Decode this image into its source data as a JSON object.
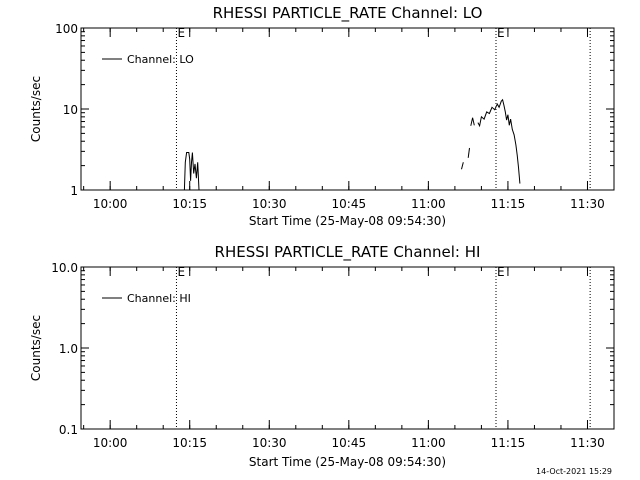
{
  "chart_data": [
    {
      "type": "line",
      "title": "RHESSI PARTICLE_RATE Channel: LO",
      "xlabel": "Start Time (25-May-08 09:54:30)",
      "ylabel": "Counts/sec",
      "y_scale": "log",
      "ylim": [
        1,
        100
      ],
      "y_ticks": [
        1,
        10,
        100
      ],
      "y_tick_labels": [
        "1",
        "10",
        "100"
      ],
      "xlim": [
        "09:54:30",
        "11:35:00"
      ],
      "x_ticks": [
        "10:00",
        "10:15",
        "10:30",
        "10:45",
        "11:00",
        "11:15",
        "11:30"
      ],
      "legend": {
        "entries": [
          "Channel: LO"
        ],
        "position": "top-left"
      },
      "event_lines": [
        {
          "time": "10:12:30",
          "label": "E"
        },
        {
          "time": "11:12:45",
          "label": "E"
        },
        {
          "time": "11:30:30",
          "label": ""
        }
      ],
      "series": [
        {
          "name": "Channel: LO",
          "segments": [
            [
              [
                "10:14:00",
                1.0
              ],
              [
                "10:14:10",
                2.2
              ],
              [
                "10:14:25",
                2.9
              ],
              [
                "10:14:50",
                2.9
              ],
              [
                "10:15:00",
                2.4
              ],
              [
                "10:15:10",
                1.3
              ],
              [
                "10:15:20",
                2.2
              ],
              [
                "10:15:30",
                2.9
              ],
              [
                "10:15:45",
                1.6
              ],
              [
                "10:16:00",
                2.1
              ],
              [
                "10:16:15",
                1.4
              ],
              [
                "10:16:30",
                2.2
              ],
              [
                "10:16:45",
                1.0
              ]
            ],
            [
              [
                "11:06:15",
                1.8
              ],
              [
                "11:06:35",
                2.2
              ]
            ],
            [
              [
                "11:07:30",
                2.5
              ],
              [
                "11:07:45",
                3.3
              ]
            ],
            [
              [
                "11:08:00",
                6.2
              ],
              [
                "11:08:20",
                7.8
              ],
              [
                "11:08:40",
                6.3
              ]
            ],
            [
              [
                "11:09:20",
                6.8
              ],
              [
                "11:09:40",
                6.2
              ],
              [
                "11:10:00",
                8.0
              ],
              [
                "11:10:30",
                7.5
              ],
              [
                "11:11:00",
                9.2
              ],
              [
                "11:11:30",
                8.8
              ],
              [
                "11:12:00",
                10.5
              ],
              [
                "11:12:30",
                9.8
              ],
              [
                "11:13:00",
                11.5
              ],
              [
                "11:13:20",
                10.5
              ],
              [
                "11:13:45",
                12.5
              ],
              [
                "11:14:00",
                13.0
              ],
              [
                "11:14:15",
                11.0
              ],
              [
                "11:14:30",
                9.2
              ],
              [
                "11:14:45",
                7.3
              ],
              [
                "11:15:00",
                8.5
              ],
              [
                "11:15:15",
                6.3
              ],
              [
                "11:15:30",
                7.5
              ],
              [
                "11:15:50",
                5.6
              ],
              [
                "11:16:10",
                4.8
              ],
              [
                "11:16:30",
                3.6
              ],
              [
                "11:16:45",
                2.7
              ],
              [
                "11:17:00",
                1.9
              ],
              [
                "11:17:15",
                1.2
              ]
            ]
          ]
        }
      ]
    },
    {
      "type": "line",
      "title": "RHESSI PARTICLE_RATE Channel: HI",
      "xlabel": "Start Time (25-May-08 09:54:30)",
      "ylabel": "Counts/sec",
      "y_scale": "log",
      "ylim": [
        0.1,
        10
      ],
      "y_ticks": [
        0.1,
        1,
        10
      ],
      "y_tick_labels": [
        "0.1",
        "1.0",
        "10.0"
      ],
      "xlim": [
        "09:54:30",
        "11:35:00"
      ],
      "x_ticks": [
        "10:00",
        "10:15",
        "10:30",
        "10:45",
        "11:00",
        "11:15",
        "11:30"
      ],
      "legend": {
        "entries": [
          "Channel: HI"
        ],
        "position": "top-left"
      },
      "event_lines": [
        {
          "time": "10:12:30",
          "label": "E"
        },
        {
          "time": "11:12:45",
          "label": "E"
        },
        {
          "time": "11:30:30",
          "label": ""
        }
      ],
      "series": [
        {
          "name": "Channel: HI",
          "segments": []
        }
      ]
    }
  ],
  "footer": {
    "timestamp": "14-Oct-2021 15:29"
  }
}
